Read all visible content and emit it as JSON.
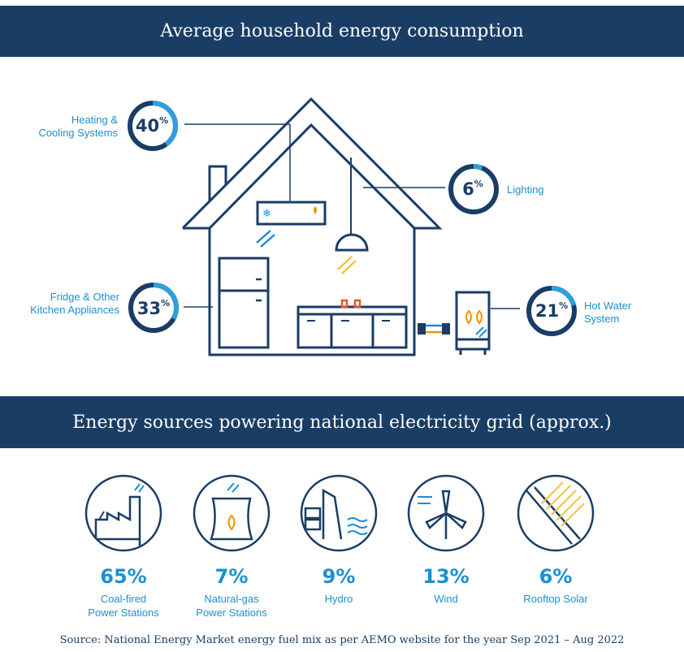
{
  "header_consumption": "Average household energy consumption",
  "header_sources": "Energy sources powering national electricity grid (approx.)",
  "consumption": [
    {
      "label_line1": "Heating &",
      "label_line2": "Cooling Systems",
      "value": "40",
      "unit": "%",
      "fraction": 0.4
    },
    {
      "label_line1": "Lighting",
      "label_line2": "",
      "value": "6",
      "unit": "%",
      "fraction": 0.06
    },
    {
      "label_line1": "Fridge & Other",
      "label_line2": "Kitchen Appliances",
      "value": "33",
      "unit": "%",
      "fraction": 0.33
    },
    {
      "label_line1": "Hot Water",
      "label_line2": "System",
      "value": "21",
      "unit": "%",
      "fraction": 0.21
    }
  ],
  "sources": [
    {
      "value": "65%",
      "label_line1": "Coal-fired",
      "label_line2": "Power Stations",
      "icon": "coal-factory-icon"
    },
    {
      "value": "7%",
      "label_line1": "Natural-gas",
      "label_line2": "Power Stations",
      "icon": "gas-cooling-tower-icon"
    },
    {
      "value": "9%",
      "label_line1": "Hydro",
      "label_line2": "",
      "icon": "hydro-dam-icon"
    },
    {
      "value": "13%",
      "label_line1": "Wind",
      "label_line2": "",
      "icon": "wind-turbine-icon"
    },
    {
      "value": "6%",
      "label_line1": "Rooftop Solar",
      "label_line2": "",
      "icon": "solar-panel-icon"
    }
  ],
  "source_note": "Source: National Energy Market energy fuel mix as per AEMO website for the year Sep 2021 – Aug 2022",
  "colors": {
    "navy": "#1a3d66",
    "blue": "#1c8fd0",
    "orange": "#f39200",
    "yellow": "#f5c242",
    "light_blue": "#2f9fdb"
  }
}
